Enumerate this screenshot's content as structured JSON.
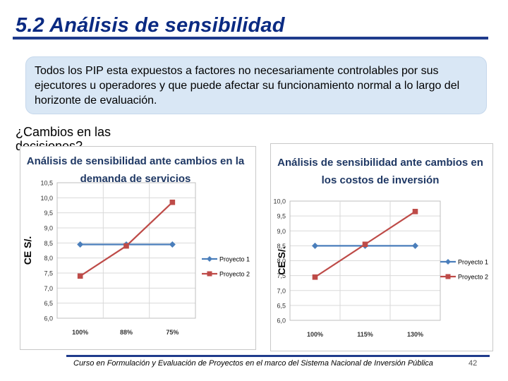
{
  "slide": {
    "title": "5.2  Análisis de sensibilidad",
    "callout": "Todos los PIP esta expuestos a factores no necesariamente controlables por sus ejecutores u operadores  y que puede afectar su funcionamiento normal a lo largo del horizonte de evaluación.",
    "question": "¿Cambios en las decisiones?",
    "footer": "Curso en Formulación y Evaluación de Proyectos en el marco del Sistema Nacional de Inversión Pública",
    "page_number": "42"
  },
  "colors": {
    "title": "#0a2a82",
    "accent_rule": "#1f3b8c",
    "callout_bg": "#d9e7f5",
    "series_blue": "#4a7ebb",
    "series_red": "#be4b48",
    "chart_title": "#1f3864"
  },
  "chart_data": [
    {
      "type": "line",
      "title": [
        "Análisis de sensibilidad  ante cambios en la",
        "demanda de servicios"
      ],
      "ylabel": "CE S/.",
      "categories": [
        "100%",
        "88%",
        "75%"
      ],
      "ylim": [
        6.0,
        10.5
      ],
      "yticks": [
        "6,0",
        "6,5",
        "7,0",
        "7,5",
        "8,0",
        "8,5",
        "9,0",
        "9,5",
        "10,0",
        "10,5"
      ],
      "grid": true,
      "legend": "right",
      "series": [
        {
          "name": "Proyecto 1",
          "values": [
            8.45,
            8.45,
            8.45
          ],
          "color": "#4a7ebb",
          "marker": "diamond"
        },
        {
          "name": "Proyecto 2",
          "values": [
            7.4,
            8.4,
            9.85
          ],
          "color": "#be4b48",
          "marker": "square"
        }
      ]
    },
    {
      "type": "line",
      "title": [
        "Análisis de sensibilidad ante cambios en",
        "los costos de inversión"
      ],
      "ylabel": "CE S/.",
      "categories": [
        "100%",
        "115%",
        "130%"
      ],
      "ylim": [
        6.0,
        10.0
      ],
      "yticks": [
        "6,0",
        "6,5",
        "7,0",
        "7,5",
        "8,0",
        "8,5",
        "9,0",
        "9,5",
        "10,0"
      ],
      "grid": true,
      "legend": "right",
      "series": [
        {
          "name": "Proyecto 1",
          "values": [
            8.5,
            8.5,
            8.5
          ],
          "color": "#4a7ebb",
          "marker": "diamond"
        },
        {
          "name": "Proyecto 2",
          "values": [
            7.45,
            8.55,
            9.65
          ],
          "color": "#be4b48",
          "marker": "square"
        }
      ]
    }
  ]
}
